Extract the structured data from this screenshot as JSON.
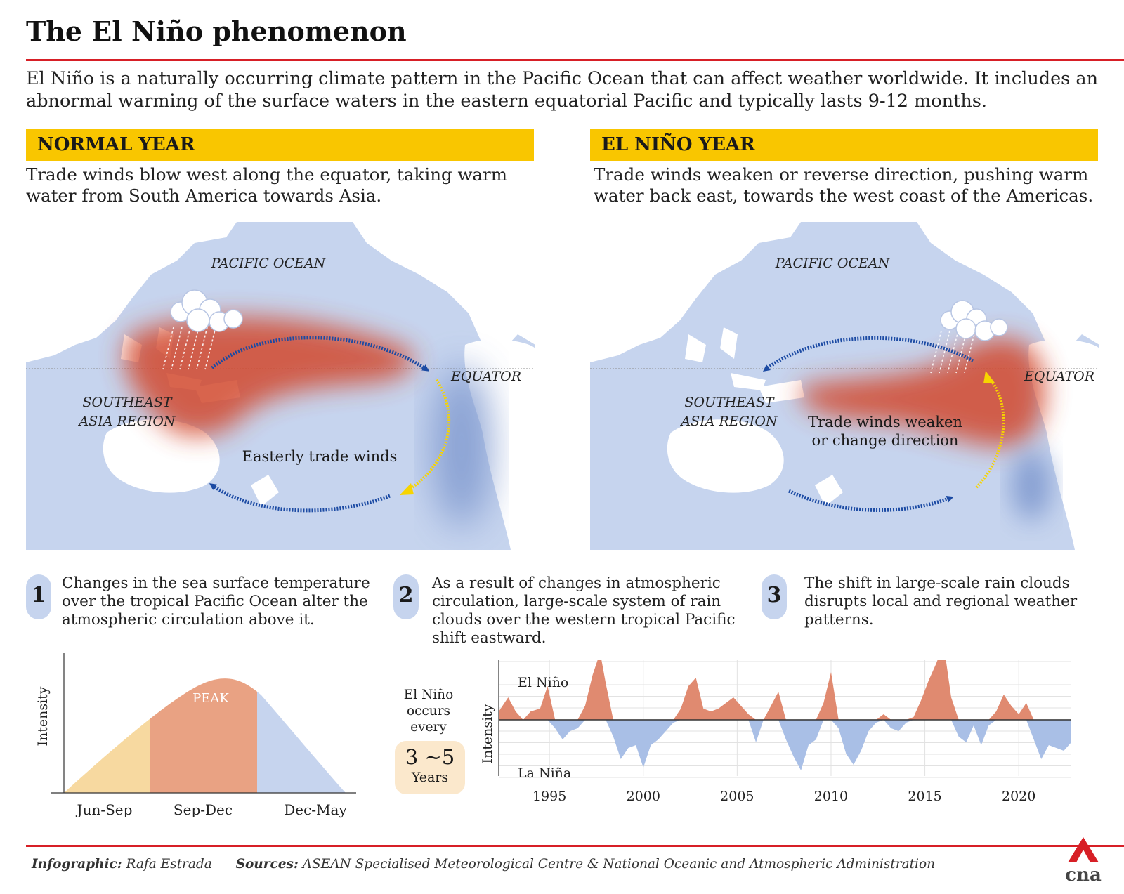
{
  "header": {
    "title": "The El Niño phenomenon",
    "intro": "El Niño is a naturally occurring climate pattern in the Pacific Ocean that can affect weather worldwide. It includes an abnormal warming of the surface waters in the eastern equatorial Pacific and typically lasts 9-12 months."
  },
  "normal": {
    "heading": "NORMAL YEAR",
    "description": "Trade winds blow west along the equator, taking warm water from South America towards Asia.",
    "map": {
      "pacific_label": "PACIFIC OCEAN",
      "equator_label": "EQUATOR",
      "region_label_1": "SOUTHEAST",
      "region_label_2": "ASIA REGION",
      "winds_label": "Easterly trade winds"
    }
  },
  "elnino": {
    "heading": "EL NIÑO YEAR",
    "description": "Trade winds weaken or reverse direction, pushing warm water back east, towards the west coast of the Americas.",
    "map": {
      "pacific_label": "PACIFIC OCEAN",
      "equator_label": "EQUATOR",
      "region_label_1": "SOUTHEAST",
      "region_label_2": "ASIA REGION",
      "winds_label_1": "Trade winds weaken",
      "winds_label_2": "or change direction"
    }
  },
  "steps": [
    {
      "number": "1",
      "text": "Changes in the sea surface temperature over the tropical Pacific Ocean alter the atmospheric circulation above it."
    },
    {
      "number": "2",
      "text": "As a result of changes in atmospheric circulation, large-scale system of rain clouds over the western tropical Pacific shift eastward."
    },
    {
      "number": "3",
      "text": "The shift in large-scale rain clouds disrupts local and regional weather patterns."
    }
  ],
  "intensity_curve": {
    "ylabel": "Intensity",
    "peak_label": "PEAK",
    "phases": [
      {
        "label": "Jun-Sep",
        "color": "#f7d9a0"
      },
      {
        "label": "Sep-Dec",
        "color": "#e9a283"
      },
      {
        "label": "Dec-May",
        "color": "#c6d4ee"
      }
    ]
  },
  "occurrence": {
    "line1": "El Niño",
    "line2": "occurs",
    "line3": "every",
    "value": "3 ~5",
    "unit": "Years"
  },
  "colors": {
    "accent": "#d71f26",
    "banner": "#f9c600",
    "warm": "#e08a70",
    "cool": "#a9bfe6",
    "map_water": "#c6d4ee",
    "arrow_blue": "#1b4aa3",
    "arrow_yellow": "#f7d400"
  },
  "chart_data": {
    "type": "area",
    "ylabel": "Intensity",
    "top_label": "El Niño",
    "bottom_label": "La Niña",
    "xlim": [
      1992.3,
      2022.8
    ],
    "ylim": [
      -2.0,
      2.0
    ],
    "xticks": [
      1995,
      2000,
      2005,
      2010,
      2015,
      2020
    ],
    "x": [
      1992.3,
      1992.8,
      1993.2,
      1993.6,
      1994.0,
      1994.5,
      1994.9,
      1995.3,
      1995.7,
      1996.1,
      1996.5,
      1996.9,
      1997.3,
      1997.7,
      1998.0,
      1998.4,
      1998.8,
      1999.2,
      1999.6,
      2000.0,
      2000.4,
      2000.8,
      2001.2,
      2001.6,
      2002.0,
      2002.4,
      2002.8,
      2003.2,
      2003.6,
      2004.0,
      2004.4,
      2004.8,
      2005.2,
      2005.6,
      2006.0,
      2006.4,
      2006.8,
      2007.2,
      2007.6,
      2008.0,
      2008.4,
      2008.8,
      2009.2,
      2009.6,
      2010.0,
      2010.4,
      2010.8,
      2011.2,
      2011.6,
      2012.0,
      2012.4,
      2012.8,
      2013.2,
      2013.6,
      2014.0,
      2014.4,
      2014.8,
      2015.2,
      2015.6,
      2016.0,
      2016.4,
      2016.8,
      2017.2,
      2017.6,
      2018.0,
      2018.4,
      2018.8,
      2019.2,
      2019.6,
      2020.0,
      2020.4,
      2020.8,
      2021.2,
      2021.6,
      2022.0,
      2022.4,
      2022.8
    ],
    "values": [
      0.3,
      0.8,
      0.3,
      0.0,
      0.3,
      0.4,
      1.2,
      -0.3,
      -0.7,
      -0.4,
      -0.3,
      0.5,
      1.6,
      2.4,
      1.3,
      -0.6,
      -1.4,
      -1.0,
      -0.9,
      -1.7,
      -0.9,
      -0.7,
      -0.4,
      -0.1,
      0.4,
      1.2,
      1.5,
      0.4,
      0.3,
      0.4,
      0.6,
      0.8,
      0.5,
      0.2,
      -0.8,
      0.0,
      0.5,
      1.0,
      -0.7,
      -1.3,
      -1.8,
      -0.9,
      -0.7,
      0.6,
      1.7,
      -0.3,
      -1.2,
      -1.6,
      -1.1,
      -0.4,
      -0.1,
      0.2,
      -0.3,
      -0.4,
      -0.1,
      0.1,
      0.7,
      1.4,
      2.0,
      2.7,
      0.8,
      -0.6,
      -0.8,
      -0.2,
      -0.9,
      -0.2,
      0.3,
      0.9,
      0.5,
      0.2,
      0.6,
      -0.7,
      -1.4,
      -0.9,
      -1.0,
      -1.1,
      -0.8
    ]
  },
  "footer": {
    "credit_label": "Infographic:",
    "credit_name": "Rafa Estrada",
    "sources_label": "Sources:",
    "sources_text": "ASEAN Specialised Meteorological Centre & National Oceanic and Atmospheric Administration",
    "brand": "cna"
  }
}
